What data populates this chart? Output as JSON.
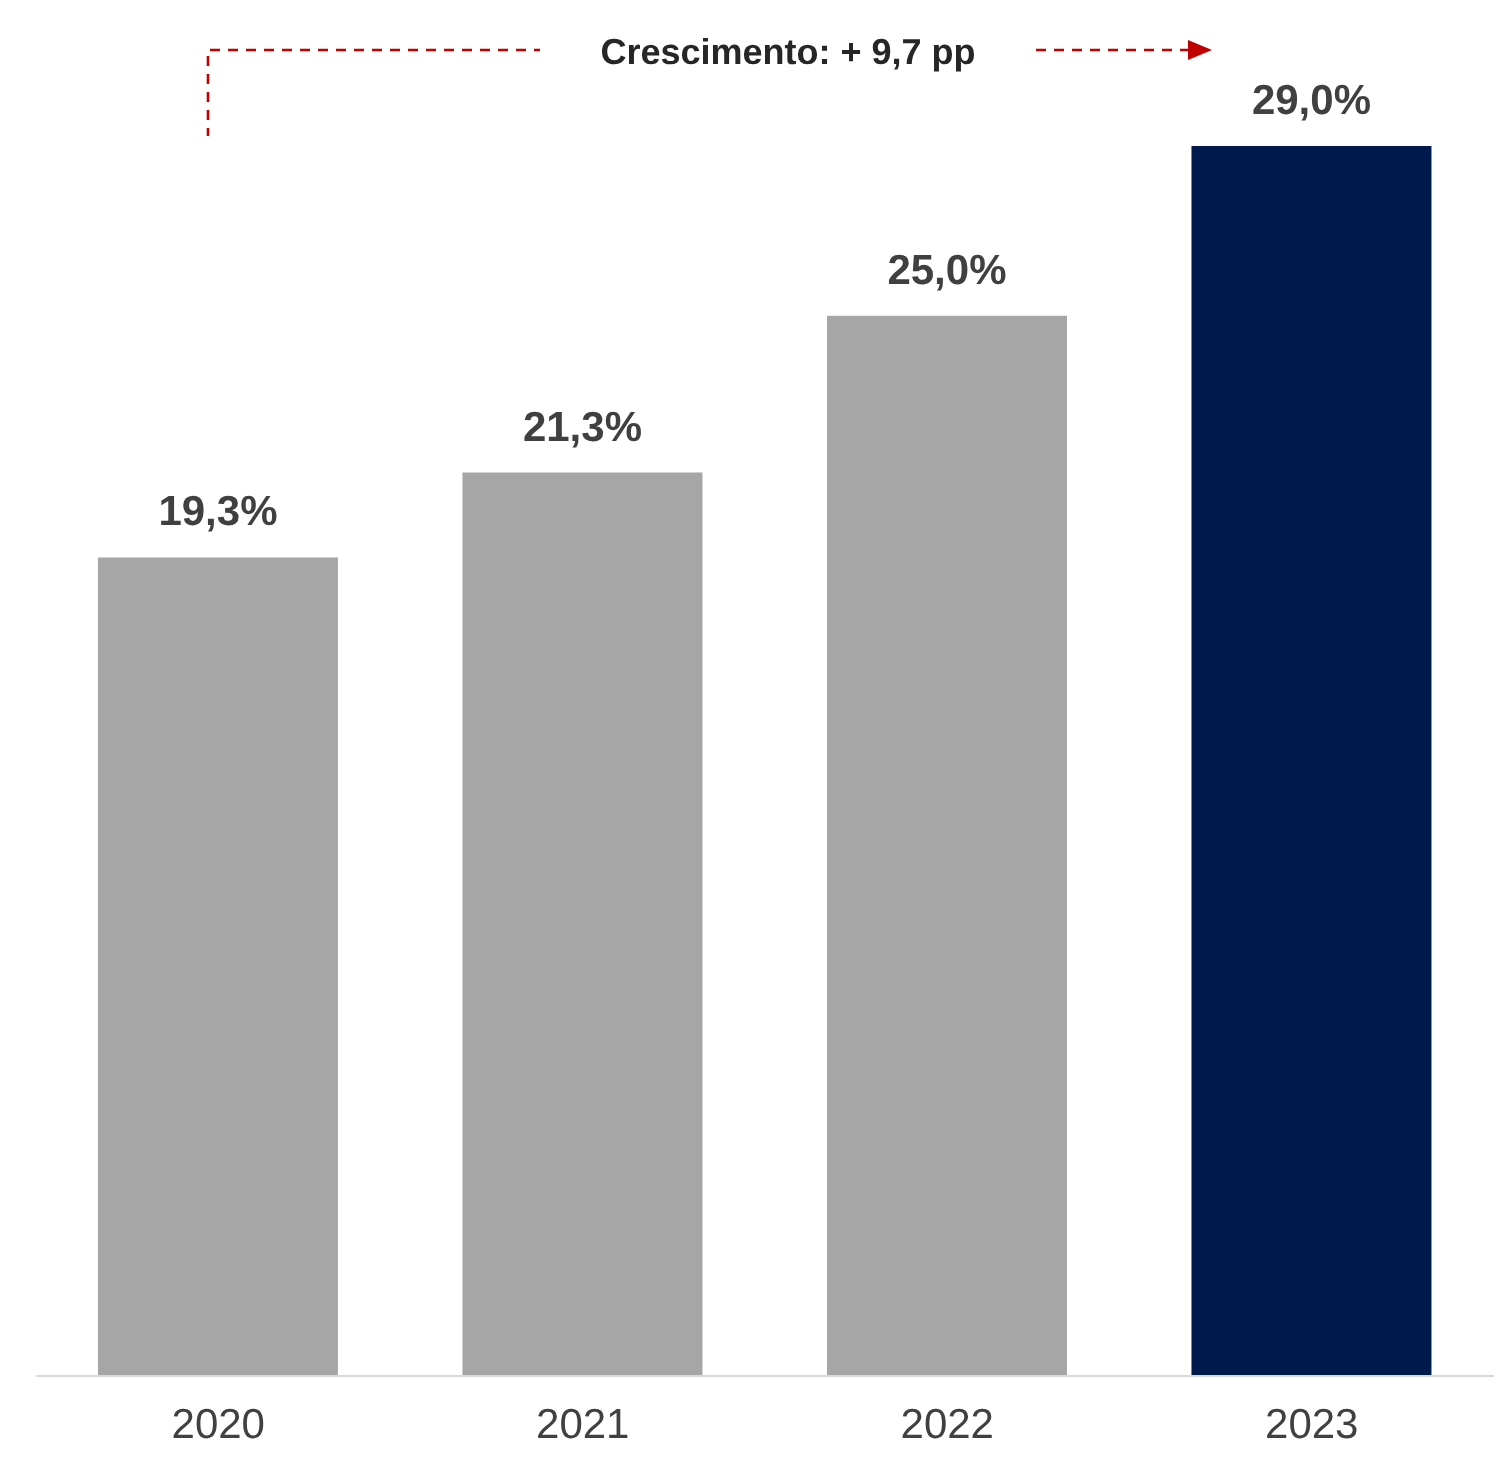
{
  "chart_data": {
    "type": "bar",
    "categories": [
      "2020",
      "2021",
      "2022",
      "2023"
    ],
    "values": [
      19.3,
      21.3,
      25.0,
      29.0
    ],
    "value_labels": [
      "19,3%",
      "21,3%",
      "25,0%",
      "29,0%"
    ],
    "colors": [
      "#a6a6a6",
      "#a6a6a6",
      "#a6a6a6",
      "#001a4d"
    ],
    "annotations": [
      "Crescimento: + 9,7 pp"
    ]
  }
}
